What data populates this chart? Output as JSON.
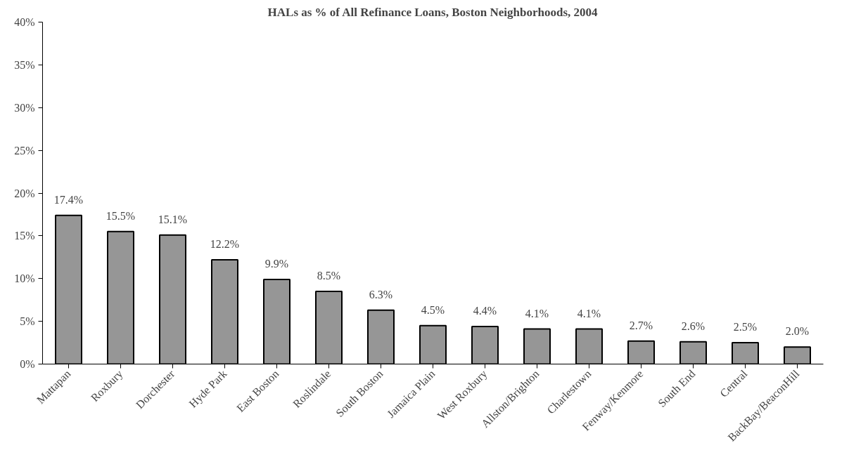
{
  "chart_data": {
    "type": "bar",
    "title": "HALs as % of All Refinance Loans, Boston Neighborhoods, 2004",
    "categories": [
      "Mattapan",
      "Roxbury",
      "Dorchester",
      "Hyde Park",
      "East Boston",
      "Roslindale",
      "South Boston",
      "Jamaica Plain",
      "West Roxbury",
      "Allston/Brighton",
      "Charlestown",
      "Fenway/Kenmore",
      "South End",
      "Central",
      "BackBay/BeaconHill"
    ],
    "values": [
      17.4,
      15.5,
      15.1,
      12.2,
      9.9,
      8.5,
      6.3,
      4.5,
      4.4,
      4.1,
      4.1,
      2.7,
      2.6,
      2.5,
      2.0
    ],
    "value_labels": [
      "17.4%",
      "15.5%",
      "15.1%",
      "12.2%",
      "9.9%",
      "8.5%",
      "6.3%",
      "4.5%",
      "4.4%",
      "4.1%",
      "4.1%",
      "2.7%",
      "2.6%",
      "2.5%",
      "2.0%"
    ],
    "color": "#969696",
    "ylim": [
      0,
      40
    ],
    "yticks": [
      {
        "value": 0,
        "label": "0%"
      },
      {
        "value": 5,
        "label": "5%"
      },
      {
        "value": 10,
        "label": "10%"
      },
      {
        "value": 15,
        "label": "15%"
      },
      {
        "value": 20,
        "label": "20%"
      },
      {
        "value": 25,
        "label": "25%"
      },
      {
        "value": 30,
        "label": "30%"
      },
      {
        "value": 35,
        "label": "35%"
      },
      {
        "value": 40,
        "label": "40%"
      }
    ],
    "grid": false
  }
}
